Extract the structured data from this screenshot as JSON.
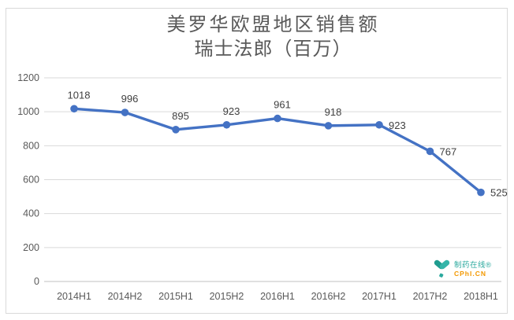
{
  "chart_data": {
    "type": "line",
    "title": "美罗华欧盟地区销售额",
    "subtitle": "瑞士法郎（百万）",
    "categories": [
      "2014H1",
      "2014H2",
      "2015H1",
      "2015H2",
      "2016H1",
      "2016H2",
      "2017H1",
      "2017H2",
      "2018H1"
    ],
    "values": [
      1018,
      996,
      895,
      923,
      961,
      918,
      923,
      767,
      525
    ],
    "xlabel": "",
    "ylabel": "",
    "ylim": [
      0,
      1200
    ],
    "ytick_step": 200,
    "grid": true,
    "legend_position": "none",
    "label_placement": [
      "above",
      "above",
      "above",
      "above",
      "above",
      "above",
      "right",
      "right",
      "right"
    ],
    "series_name": "美罗华欧盟地区销售额"
  },
  "colors": {
    "line": "#4472c4",
    "marker": "#4472c4",
    "grid": "#d9d9d9",
    "axis_line": "#c0c0c0",
    "axis_text": "#595959",
    "data_label": "#404040",
    "title_text": "#595959",
    "frame_border": "#d9d9d9",
    "logo_teal_dark": "#1f9c8f",
    "logo_teal": "#35b5a9",
    "logo_orange": "#f39800"
  },
  "watermark": {
    "brand_cn": "制药在线®",
    "brand_en": "CPhI.CN"
  }
}
